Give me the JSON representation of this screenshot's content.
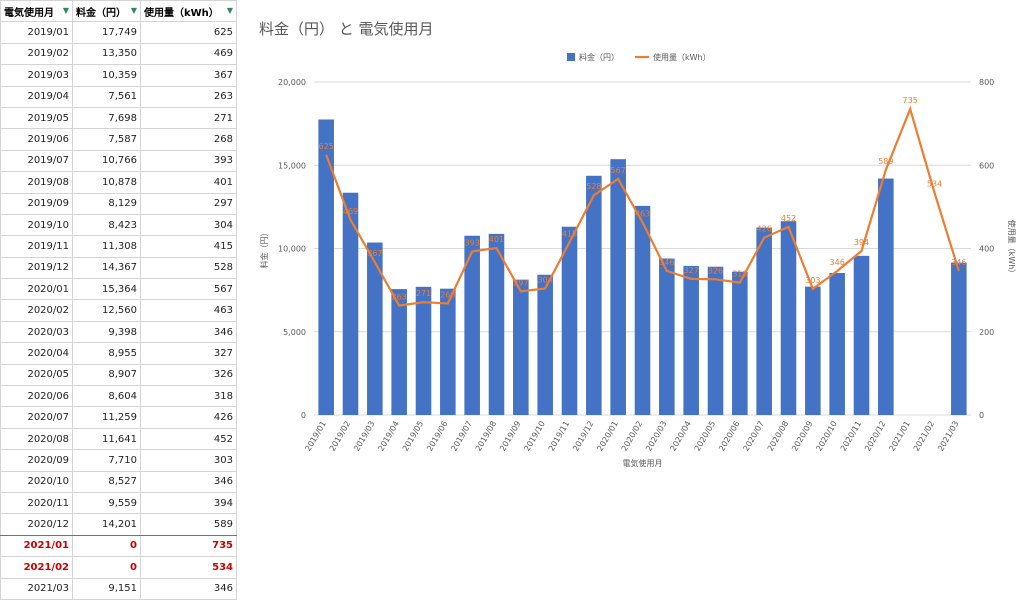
{
  "sheet": {
    "headers": [
      "電気使用月",
      "料金（円）",
      "使用量（kWh）"
    ],
    "rows": [
      [
        "2019/01",
        "17,749",
        "625"
      ],
      [
        "2019/02",
        "13,350",
        "469"
      ],
      [
        "2019/03",
        "10,359",
        "367"
      ],
      [
        "2019/04",
        "7,561",
        "263"
      ],
      [
        "2019/05",
        "7,698",
        "271"
      ],
      [
        "2019/06",
        "7,587",
        "268"
      ],
      [
        "2019/07",
        "10,766",
        "393"
      ],
      [
        "2019/08",
        "10,878",
        "401"
      ],
      [
        "2019/09",
        "8,129",
        "297"
      ],
      [
        "2019/10",
        "8,423",
        "304"
      ],
      [
        "2019/11",
        "11,308",
        "415"
      ],
      [
        "2019/12",
        "14,367",
        "528"
      ],
      [
        "2020/01",
        "15,364",
        "567"
      ],
      [
        "2020/02",
        "12,560",
        "463"
      ],
      [
        "2020/03",
        "9,398",
        "346"
      ],
      [
        "2020/04",
        "8,955",
        "327"
      ],
      [
        "2020/05",
        "8,907",
        "326"
      ],
      [
        "2020/06",
        "8,604",
        "318"
      ],
      [
        "2020/07",
        "11,259",
        "426"
      ],
      [
        "2020/08",
        "11,641",
        "452"
      ],
      [
        "2020/09",
        "7,710",
        "303"
      ],
      [
        "2020/10",
        "8,527",
        "346"
      ],
      [
        "2020/11",
        "9,559",
        "394"
      ],
      [
        "2020/12",
        "14,201",
        "589"
      ],
      [
        "2021/01",
        "0",
        "735"
      ],
      [
        "2021/02",
        "0",
        "534"
      ],
      [
        "2021/03",
        "9,151",
        "346"
      ]
    ],
    "highlight_rows": [
      24,
      25
    ],
    "highlight_color": "#cc0000"
  },
  "chart_data": {
    "type": "bar",
    "title": "料金（円） と 電気使用月",
    "xlabel": "電気使用月",
    "ylabel": "料金（円）",
    "y2label": "使用量（kWh）",
    "categories": [
      "2019/01",
      "2019/02",
      "2019/03",
      "2019/04",
      "2019/05",
      "2019/06",
      "2019/07",
      "2019/08",
      "2019/09",
      "2019/10",
      "2019/11",
      "2019/12",
      "2020/01",
      "2020/02",
      "2020/03",
      "2020/04",
      "2020/05",
      "2020/06",
      "2020/07",
      "2020/08",
      "2020/09",
      "2020/10",
      "2020/11",
      "2020/12",
      "2021/01",
      "2021/02",
      "2021/03"
    ],
    "ylim": [
      0,
      20000
    ],
    "yticks": [
      "0",
      "5,000",
      "10,000",
      "15,000",
      "20,000"
    ],
    "y2lim": [
      0,
      800
    ],
    "y2ticks": [
      "0",
      "200",
      "400",
      "600",
      "800"
    ],
    "legend_position": "top",
    "grid": true,
    "series": [
      {
        "name": "料金（円）",
        "type": "bar",
        "color": "#4472c4",
        "axis": "left",
        "values": [
          17749,
          13350,
          10359,
          7561,
          7698,
          7587,
          10766,
          10878,
          8129,
          8423,
          11308,
          14367,
          15364,
          12560,
          9398,
          8955,
          8907,
          8604,
          11259,
          11641,
          7710,
          8527,
          9559,
          14201,
          0,
          0,
          9151
        ]
      },
      {
        "name": "使用量（kWh）",
        "type": "line",
        "color": "#ed7d31",
        "axis": "right",
        "values": [
          625,
          469,
          367,
          263,
          271,
          268,
          393,
          401,
          297,
          304,
          415,
          528,
          567,
          463,
          346,
          327,
          326,
          318,
          426,
          452,
          303,
          346,
          394,
          589,
          735,
          534,
          346
        ]
      }
    ]
  }
}
